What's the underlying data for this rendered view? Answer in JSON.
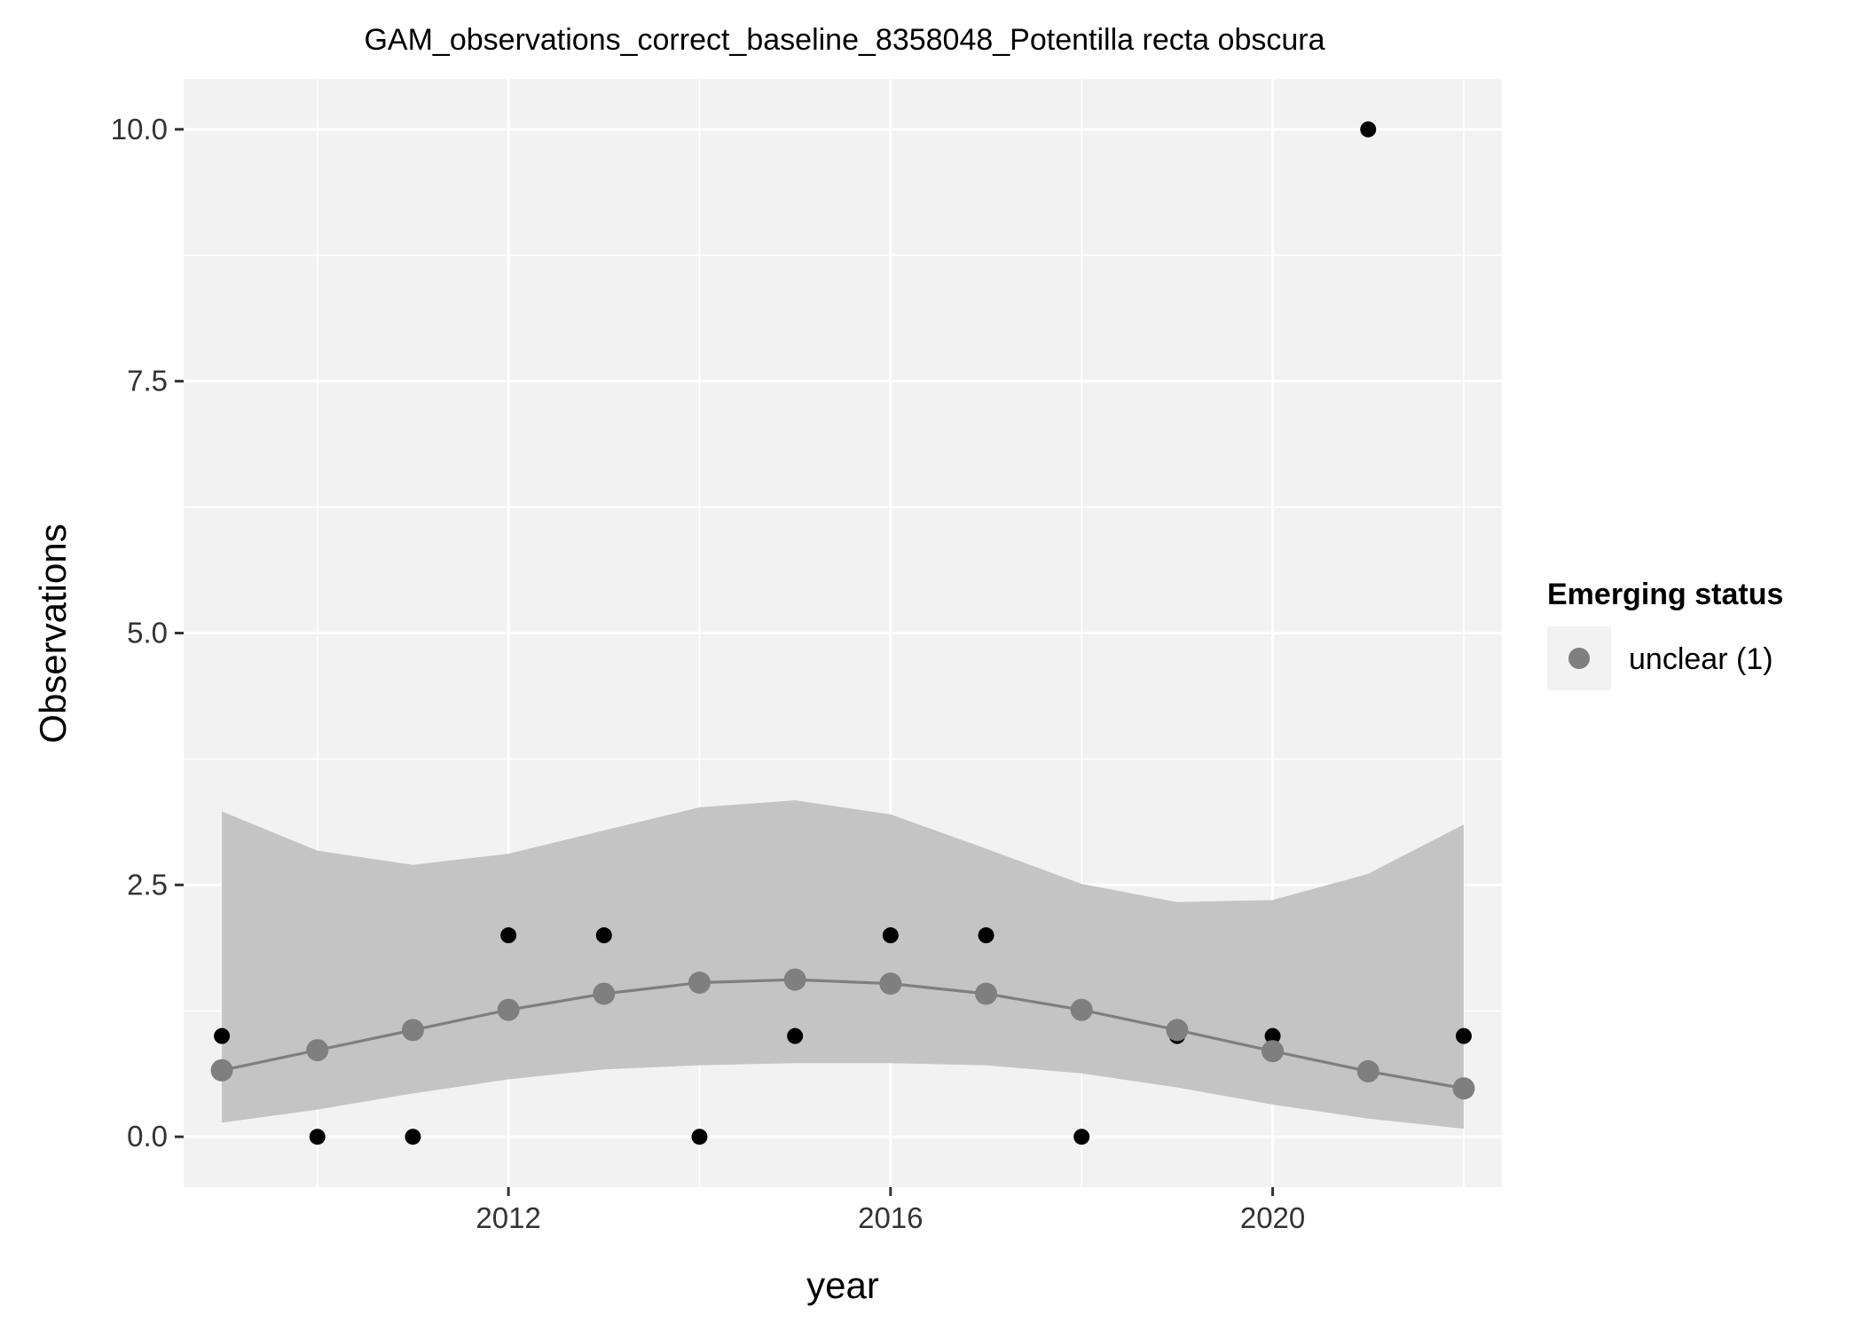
{
  "chart_data": {
    "type": "line",
    "title": "GAM_observations_correct_baseline_8358048_Potentilla recta obscura",
    "xlabel": "year",
    "ylabel": "Observations",
    "xlim": [
      2008.6,
      2022.4
    ],
    "ylim": [
      -0.5,
      10.5
    ],
    "x_ticks": [
      2012,
      2016,
      2020
    ],
    "x_tick_labels": [
      "2012",
      "2016",
      "2020"
    ],
    "y_ticks": [
      0,
      2.5,
      5,
      7.5,
      10
    ],
    "y_tick_labels": [
      "0.0",
      "2.5",
      "5.0",
      "7.5",
      "10.0"
    ],
    "grid": true,
    "legend": {
      "title": "Emerging status",
      "position": "right",
      "entries": [
        {
          "label": "unclear (1)",
          "color": "#7f7f7f"
        }
      ]
    },
    "observed": {
      "x": [
        2009,
        2010,
        2011,
        2012,
        2013,
        2014,
        2015,
        2016,
        2017,
        2018,
        2019,
        2020,
        2021,
        2022
      ],
      "y": [
        1,
        0,
        0,
        2,
        2,
        0,
        1,
        2,
        2,
        0,
        1,
        1,
        10,
        1
      ]
    },
    "series": [
      {
        "name": "unclear (1)",
        "x": [
          2009,
          2010,
          2011,
          2012,
          2013,
          2014,
          2015,
          2016,
          2017,
          2018,
          2019,
          2020,
          2021,
          2022
        ],
        "values": [
          0.66,
          0.86,
          1.06,
          1.26,
          1.42,
          1.53,
          1.56,
          1.52,
          1.42,
          1.26,
          1.06,
          0.85,
          0.65,
          0.48
        ],
        "lower": [
          0.14,
          0.27,
          0.43,
          0.57,
          0.67,
          0.71,
          0.73,
          0.73,
          0.71,
          0.63,
          0.49,
          0.32,
          0.18,
          0.08
        ],
        "upper": [
          3.23,
          2.84,
          2.7,
          2.81,
          3.04,
          3.27,
          3.34,
          3.2,
          2.86,
          2.51,
          2.33,
          2.35,
          2.61,
          3.1
        ]
      }
    ],
    "colors": {
      "panel": "#f2f2f2",
      "grid": "#ffffff",
      "ribbon": "#c4c4c4",
      "line": "#7f7f7f",
      "fitted_point": "#7f7f7f",
      "observed_point": "#000000",
      "axis_tick": "#333333"
    }
  }
}
